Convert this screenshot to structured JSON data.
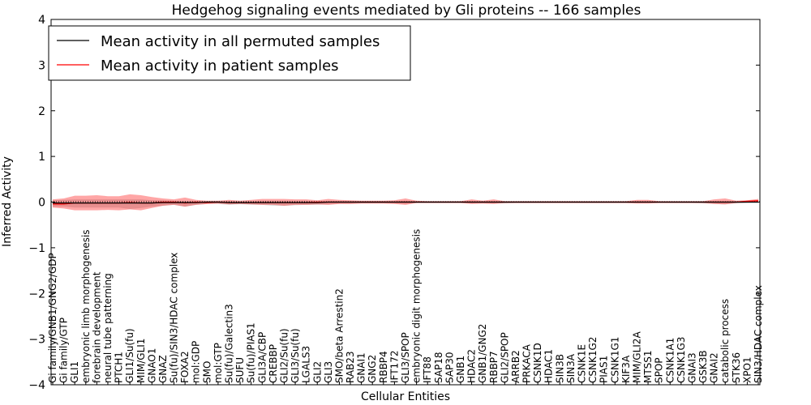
{
  "chart_data": {
    "type": "line",
    "title": "Hedgehog signaling events mediated by Gli proteins -- 166 samples",
    "xlabel": "Cellular Entities",
    "ylabel": "Inferred Activity",
    "ylim": [
      -4,
      4
    ],
    "yticks": [
      -4,
      -3,
      -2,
      -1,
      0,
      1,
      2,
      3,
      4
    ],
    "ytick_labels": [
      "−4",
      "−3",
      "−2",
      "−1",
      "0",
      "1",
      "2",
      "3",
      "4"
    ],
    "legend": {
      "placement": "top-left",
      "entries": [
        {
          "label": "Mean activity in all permuted samples",
          "color": "#000000"
        },
        {
          "label": "Mean activity in patient samples",
          "color": "#ff0000"
        }
      ]
    },
    "categories": [
      "Gi family/GNB1/GNG2/GDP",
      "Gi family/GTP",
      "GLI1",
      "embryonic limb morphogenesis",
      "forebrain development",
      "neural tube patterning",
      "PTCH1",
      "GLI1/Su(fu)",
      "MIM/GLI1",
      "GNAO1",
      "GNAZ",
      "Su(fu)/SIN3/HDAC complex",
      "FOXA2",
      "mol:GDP",
      "SMO",
      "mol:GTP",
      "Su(fu)/Galectin3",
      "SUFU",
      "Su(fu)/PIAS1",
      "GLI3A/CBP",
      "CREBBP",
      "GLI2/Su(fu)",
      "GLI3/Su(fu)",
      "LGALS3",
      "GLI2",
      "GLI3",
      "SMO/beta Arrestin2",
      "RAB23",
      "GNAI1",
      "GNG2",
      "RBBP4",
      "IFT172",
      "GLI3/SPOP",
      "embryonic digit morphogenesis",
      "IFT88",
      "SAP18",
      "SAP30",
      "GNB1",
      "HDAC2",
      "GNB1/GNG2",
      "RBBP7",
      "GLI2/SPOP",
      "ARRB2",
      "PRKACA",
      "CSNK1D",
      "HDAC1",
      "SIN3B",
      "SIN3A",
      "CSNK1E",
      "CSNK1G2",
      "PIAS1",
      "CSNK1G1",
      "KIF3A",
      "MIM/GLI2A",
      "MTSS1",
      "SPOP",
      "CSNK1A1",
      "CSNK1G3",
      "GNAI3",
      "GSK3B",
      "GNAI2",
      "catabolic process",
      "STK36",
      "XPO1",
      "SIN3/HDAC complex"
    ],
    "series": [
      {
        "name": "Mean activity in all permuted samples",
        "color": "#000000",
        "values": [
          -0.02,
          -0.02,
          -0.02,
          -0.02,
          -0.02,
          -0.02,
          -0.02,
          -0.02,
          -0.02,
          -0.02,
          -0.01,
          -0.01,
          -0.01,
          -0.01,
          0.0,
          0.0,
          -0.01,
          -0.01,
          -0.01,
          -0.01,
          -0.01,
          -0.01,
          -0.01,
          -0.01,
          -0.01,
          0.0,
          0.0,
          0.0,
          0.0,
          0.0,
          0.0,
          0.0,
          0.0,
          0.0,
          0.0,
          0.0,
          0.0,
          0.0,
          0.0,
          0.0,
          0.0,
          0.0,
          0.0,
          0.0,
          0.0,
          0.0,
          0.0,
          0.0,
          0.0,
          0.0,
          0.0,
          0.0,
          0.0,
          0.0,
          0.0,
          0.0,
          0.0,
          0.0,
          0.0,
          0.0,
          0.0,
          0.0,
          0.0,
          0.0,
          0.0
        ],
        "band_upper": [
          0.04,
          0.05,
          0.06,
          0.06,
          0.06,
          0.06,
          0.06,
          0.06,
          0.06,
          0.04,
          0.04,
          0.03,
          0.02,
          0.02,
          0.02,
          0.02,
          0.02,
          0.02,
          0.02,
          0.03,
          0.03,
          0.03,
          0.03,
          0.03,
          0.02,
          0.02,
          0.02,
          0.02,
          0.02,
          0.02,
          0.02,
          0.02,
          0.03,
          0.02,
          0.02,
          0.02,
          0.02,
          0.02,
          0.02,
          0.02,
          0.02,
          0.02,
          0.02,
          0.02,
          0.02,
          0.02,
          0.02,
          0.02,
          0.02,
          0.02,
          0.02,
          0.02,
          0.02,
          0.02,
          0.02,
          0.02,
          0.02,
          0.02,
          0.02,
          0.02,
          0.02,
          0.02,
          0.02,
          0.02,
          0.02
        ],
        "band_lower": [
          -0.1,
          -0.1,
          -0.12,
          -0.12,
          -0.12,
          -0.12,
          -0.12,
          -0.15,
          -0.13,
          -0.1,
          -0.08,
          -0.06,
          -0.1,
          -0.06,
          -0.04,
          -0.04,
          -0.06,
          -0.05,
          -0.06,
          -0.06,
          -0.08,
          -0.08,
          -0.07,
          -0.06,
          -0.06,
          -0.05,
          -0.04,
          -0.04,
          -0.03,
          -0.03,
          -0.03,
          -0.03,
          -0.04,
          -0.02,
          -0.02,
          -0.02,
          -0.02,
          -0.02,
          -0.03,
          -0.03,
          -0.03,
          -0.03,
          -0.02,
          -0.02,
          -0.02,
          -0.02,
          -0.02,
          -0.02,
          -0.02,
          -0.02,
          -0.02,
          -0.02,
          -0.02,
          -0.02,
          -0.02,
          -0.02,
          -0.02,
          -0.02,
          -0.02,
          -0.03,
          -0.04,
          -0.05,
          -0.03,
          -0.02,
          -0.02
        ]
      },
      {
        "name": "Mean activity in patient samples",
        "color": "#ff0000",
        "values": [
          -0.04,
          -0.04,
          -0.02,
          -0.02,
          -0.02,
          -0.02,
          -0.02,
          -0.01,
          -0.02,
          -0.02,
          0.0,
          0.0,
          -0.02,
          0.0,
          -0.01,
          0.0,
          -0.01,
          -0.01,
          -0.01,
          -0.01,
          -0.01,
          -0.01,
          -0.01,
          -0.01,
          0.0,
          0.0,
          0.0,
          0.0,
          0.0,
          0.0,
          0.0,
          0.0,
          0.0,
          0.0,
          0.0,
          0.0,
          0.0,
          0.0,
          0.0,
          0.0,
          0.0,
          0.0,
          0.0,
          0.0,
          0.0,
          0.0,
          0.0,
          0.0,
          0.0,
          0.0,
          0.0,
          0.0,
          0.0,
          0.0,
          0.0,
          0.0,
          0.0,
          0.0,
          0.0,
          0.0,
          0.0,
          0.0,
          0.0,
          0.02,
          0.03
        ],
        "band_upper": [
          0.06,
          0.08,
          0.14,
          0.14,
          0.15,
          0.13,
          0.13,
          0.17,
          0.15,
          0.11,
          0.08,
          0.06,
          0.1,
          0.05,
          0.03,
          0.03,
          0.05,
          0.03,
          0.05,
          0.07,
          0.07,
          0.07,
          0.06,
          0.06,
          0.04,
          0.07,
          0.05,
          0.04,
          0.03,
          0.03,
          0.03,
          0.04,
          0.08,
          0.03,
          0.02,
          0.02,
          0.02,
          0.02,
          0.06,
          0.03,
          0.06,
          0.02,
          0.02,
          0.02,
          0.02,
          0.02,
          0.02,
          0.02,
          0.02,
          0.02,
          0.02,
          0.02,
          0.02,
          0.05,
          0.05,
          0.02,
          0.02,
          0.02,
          0.02,
          0.02,
          0.06,
          0.08,
          0.03,
          0.04,
          0.07
        ],
        "band_lower": [
          -0.12,
          -0.14,
          -0.18,
          -0.18,
          -0.18,
          -0.17,
          -0.18,
          -0.16,
          -0.18,
          -0.13,
          -0.08,
          -0.06,
          -0.1,
          -0.06,
          -0.04,
          -0.03,
          -0.05,
          -0.04,
          -0.05,
          -0.06,
          -0.06,
          -0.08,
          -0.06,
          -0.06,
          -0.05,
          -0.06,
          -0.04,
          -0.04,
          -0.03,
          -0.03,
          -0.03,
          -0.04,
          -0.06,
          -0.02,
          -0.02,
          -0.02,
          -0.02,
          -0.02,
          -0.04,
          -0.03,
          -0.04,
          -0.02,
          -0.02,
          -0.02,
          -0.02,
          -0.02,
          -0.02,
          -0.02,
          -0.02,
          -0.02,
          -0.02,
          -0.02,
          -0.02,
          -0.03,
          -0.03,
          -0.02,
          -0.02,
          -0.02,
          -0.02,
          -0.02,
          -0.04,
          -0.05,
          -0.02,
          -0.01,
          0.0
        ]
      }
    ]
  }
}
